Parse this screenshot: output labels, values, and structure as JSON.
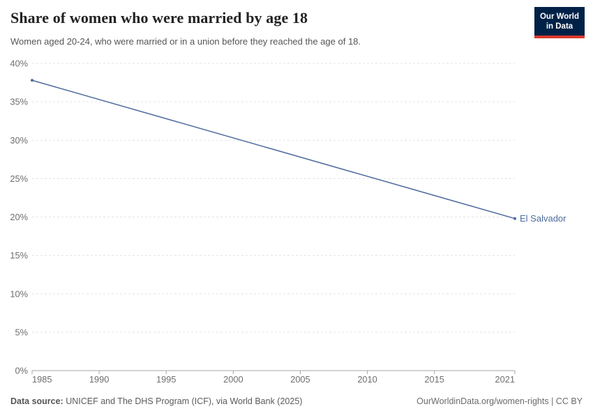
{
  "header": {
    "title": "Share of women who were married by age 18",
    "subtitle": "Women aged 20-24, who were married or in a union before they reached the age of 18.",
    "logo": {
      "line1": "Our World",
      "line2": "in Data"
    }
  },
  "chart_data": {
    "type": "line",
    "title": "Share of women who were married by age 18",
    "xlabel": "",
    "ylabel": "",
    "xlim": [
      1985,
      2021
    ],
    "ylim": [
      0,
      40
    ],
    "x_ticks": [
      1985,
      1990,
      1995,
      2000,
      2005,
      2010,
      2015,
      2021
    ],
    "y_ticks": [
      0,
      5,
      10,
      15,
      20,
      25,
      30,
      35,
      40
    ],
    "y_tick_suffix": "%",
    "grid": "horizontal-dashed",
    "legend_position": "end-of-line-label",
    "series": [
      {
        "name": "El Salvador",
        "color": "#4C6A9C",
        "points": [
          {
            "x": 1985,
            "y": 37.8
          },
          {
            "x": 2021,
            "y": 19.8
          }
        ]
      }
    ]
  },
  "footer": {
    "source_label": "Data source:",
    "source_text": " UNICEF and The DHS Program (ICF), via World Bank (2025)",
    "link_text": "OurWorldinData.org/women-rights | CC BY"
  },
  "colors": {
    "line": "#4C6A9C",
    "grid": "#e3e3e3",
    "axis": "#a5a5a5",
    "tick_label": "#6e6e6e",
    "logo_bg": "#002147",
    "logo_red": "#D93B2C"
  }
}
